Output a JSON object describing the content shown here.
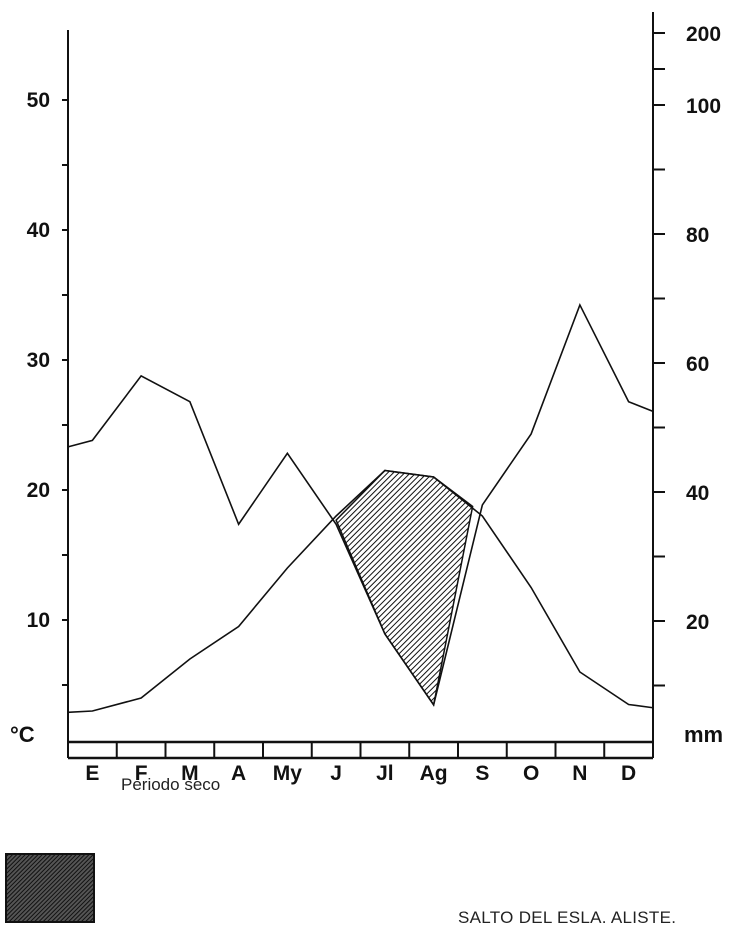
{
  "chart_data": {
    "type": "line",
    "categories": [
      "E",
      "F",
      "M",
      "A",
      "My",
      "J",
      "Jl",
      "Ag",
      "S",
      "O",
      "N",
      "D"
    ],
    "left_axis": {
      "unit": "°C",
      "ticks": [
        10,
        20,
        30,
        40,
        50
      ],
      "range": [
        0,
        55
      ]
    },
    "right_axis": {
      "unit": "mm",
      "ticks": [
        20,
        40,
        60,
        80,
        100,
        200
      ],
      "range": [
        0,
        200
      ]
    },
    "series": [
      {
        "axis": "left",
        "values": [
          3.0,
          4.0,
          7.0,
          9.5,
          14.0,
          18.0,
          21.5,
          21.0,
          18.0,
          12.5,
          6.0,
          3.5
        ]
      },
      {
        "axis": "right",
        "values": [
          48,
          58,
          54,
          35,
          46,
          35,
          18,
          7,
          38,
          49,
          69,
          54
        ]
      }
    ],
    "dry_period": [
      "J",
      "Jl",
      "Ag",
      "S"
    ],
    "legend": {
      "label": "Periodo seco"
    },
    "title": "SALTO DEL ESLA. ALISTE."
  },
  "legend": {
    "dry_label": "Periodo seco"
  },
  "station": {
    "name": "SALTO DEL ESLA. ALISTE."
  }
}
